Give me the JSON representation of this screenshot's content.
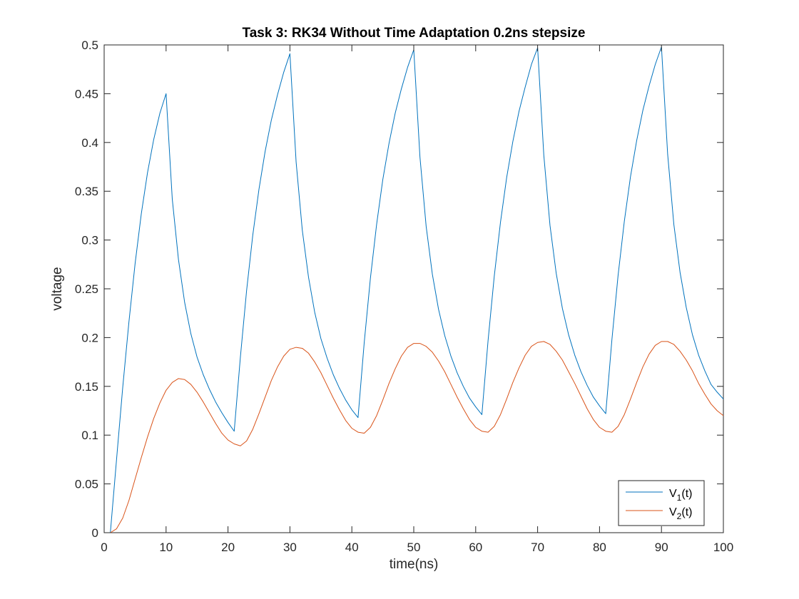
{
  "chart_data": {
    "type": "line",
    "title": "Task 3: RK34 Without Time Adaptation 0.2ns stepsize",
    "xlabel": "time(ns)",
    "ylabel": "voltage",
    "xlim": [
      0,
      100
    ],
    "ylim": [
      0,
      0.5
    ],
    "xticks": [
      0,
      10,
      20,
      30,
      40,
      50,
      60,
      70,
      80,
      90,
      100
    ],
    "yticks": [
      0,
      0.05,
      0.1,
      0.15,
      0.2,
      0.25,
      0.3,
      0.35,
      0.4,
      0.45,
      0.5
    ],
    "xtick_labels": [
      "0",
      "10",
      "20",
      "30",
      "40",
      "50",
      "60",
      "70",
      "80",
      "90",
      "100"
    ],
    "ytick_labels": [
      "0",
      "0.05",
      "0.1",
      "0.15",
      "0.2",
      "0.25",
      "0.3",
      "0.35",
      "0.4",
      "0.45",
      "0.5"
    ],
    "grid": false,
    "legend_position": "bottom-right",
    "series": [
      {
        "name_base": "V",
        "name_sub": "1",
        "name_suffix": "(t)",
        "color": "#0072BD",
        "x": [
          1,
          2,
          3,
          4,
          5,
          6,
          7,
          8,
          9,
          10,
          11,
          12,
          13,
          14,
          15,
          16,
          17,
          18,
          19,
          20,
          21,
          22,
          23,
          24,
          25,
          26,
          27,
          28,
          29,
          30,
          31,
          32,
          33,
          34,
          35,
          36,
          37,
          38,
          39,
          40,
          41,
          42,
          43,
          44,
          45,
          46,
          47,
          48,
          49,
          50,
          51,
          52,
          53,
          54,
          55,
          56,
          57,
          58,
          59,
          60,
          61,
          62,
          63,
          64,
          65,
          66,
          67,
          68,
          69,
          70,
          71,
          72,
          73,
          74,
          75,
          76,
          77,
          78,
          79,
          80,
          81,
          82,
          83,
          84,
          85,
          86,
          87,
          88,
          89,
          90,
          91,
          92,
          93,
          94,
          95,
          96,
          97,
          98,
          99,
          100
        ],
        "y": [
          0,
          0.075,
          0.149,
          0.216,
          0.276,
          0.327,
          0.369,
          0.403,
          0.43,
          0.45,
          0.342,
          0.28,
          0.236,
          0.204,
          0.18,
          0.162,
          0.147,
          0.134,
          0.123,
          0.113,
          0.104,
          0.18,
          0.248,
          0.305,
          0.352,
          0.391,
          0.423,
          0.449,
          0.472,
          0.491,
          0.38,
          0.31,
          0.262,
          0.226,
          0.199,
          0.179,
          0.162,
          0.148,
          0.136,
          0.126,
          0.118,
          0.195,
          0.261,
          0.316,
          0.362,
          0.399,
          0.43,
          0.455,
          0.477,
          0.495,
          0.385,
          0.314,
          0.265,
          0.229,
          0.202,
          0.181,
          0.164,
          0.15,
          0.138,
          0.129,
          0.121,
          0.197,
          0.263,
          0.318,
          0.364,
          0.401,
          0.432,
          0.457,
          0.48,
          0.497,
          0.387,
          0.315,
          0.266,
          0.23,
          0.203,
          0.182,
          0.165,
          0.151,
          0.139,
          0.13,
          0.122,
          0.198,
          0.264,
          0.319,
          0.365,
          0.402,
          0.433,
          0.458,
          0.48,
          0.498,
          0.388,
          0.316,
          0.267,
          0.231,
          0.203,
          0.182,
          0.166,
          0.152,
          0.144,
          0.137
        ]
      },
      {
        "name_base": "V",
        "name_sub": "2",
        "name_suffix": "(t)",
        "color": "#D95319",
        "x": [
          1,
          2,
          3,
          4,
          5,
          6,
          7,
          8,
          9,
          10,
          11,
          12,
          13,
          14,
          15,
          16,
          17,
          18,
          19,
          20,
          21,
          22,
          23,
          24,
          25,
          26,
          27,
          28,
          29,
          30,
          31,
          32,
          33,
          34,
          35,
          36,
          37,
          38,
          39,
          40,
          41,
          42,
          43,
          44,
          45,
          46,
          47,
          48,
          49,
          50,
          51,
          52,
          53,
          54,
          55,
          56,
          57,
          58,
          59,
          60,
          61,
          62,
          63,
          64,
          65,
          66,
          67,
          68,
          69,
          70,
          71,
          72,
          73,
          74,
          75,
          76,
          77,
          78,
          79,
          80,
          81,
          82,
          83,
          84,
          85,
          86,
          87,
          88,
          89,
          90,
          91,
          92,
          93,
          94,
          95,
          96,
          97,
          98,
          99,
          100
        ],
        "y": [
          0,
          0.004,
          0.015,
          0.033,
          0.055,
          0.077,
          0.098,
          0.117,
          0.133,
          0.146,
          0.154,
          0.158,
          0.157,
          0.152,
          0.144,
          0.134,
          0.123,
          0.112,
          0.102,
          0.095,
          0.091,
          0.089,
          0.094,
          0.106,
          0.122,
          0.139,
          0.156,
          0.17,
          0.181,
          0.188,
          0.19,
          0.189,
          0.184,
          0.175,
          0.164,
          0.151,
          0.138,
          0.126,
          0.115,
          0.107,
          0.103,
          0.102,
          0.108,
          0.12,
          0.136,
          0.153,
          0.168,
          0.181,
          0.19,
          0.194,
          0.194,
          0.191,
          0.185,
          0.176,
          0.165,
          0.152,
          0.139,
          0.127,
          0.116,
          0.108,
          0.104,
          0.103,
          0.109,
          0.121,
          0.137,
          0.154,
          0.169,
          0.182,
          0.191,
          0.195,
          0.196,
          0.193,
          0.186,
          0.177,
          0.165,
          0.153,
          0.14,
          0.127,
          0.116,
          0.108,
          0.104,
          0.103,
          0.109,
          0.121,
          0.137,
          0.154,
          0.17,
          0.183,
          0.192,
          0.196,
          0.196,
          0.193,
          0.186,
          0.177,
          0.166,
          0.153,
          0.142,
          0.132,
          0.125,
          0.12
        ]
      }
    ]
  }
}
